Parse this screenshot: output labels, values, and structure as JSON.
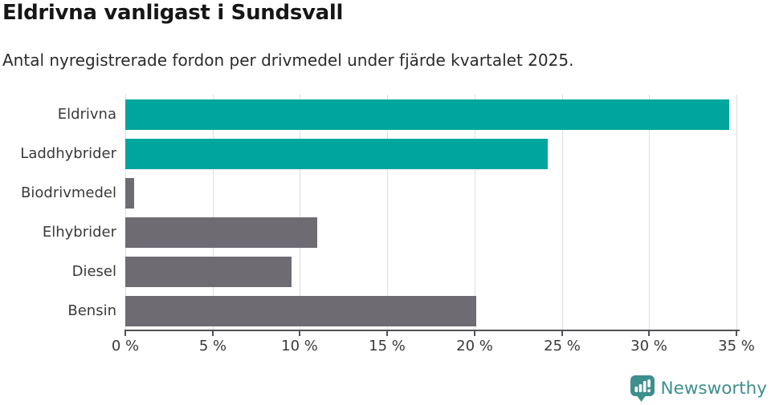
{
  "header": {
    "title": "Eldrivna vanligast i Sundsvall",
    "subtitle": "Antal nyregistrerade fordon per drivmedel under fjärde kvartalet 2025."
  },
  "chart_data": {
    "type": "bar",
    "orientation": "horizontal",
    "title": "Eldrivna vanligast i Sundsvall",
    "subtitle": "Antal nyregistrerade fordon per drivmedel under fjärde kvartalet 2025.",
    "categories": [
      "Eldrivna",
      "Laddhybrider",
      "Biodrivmedel",
      "Elhybrider",
      "Diesel",
      "Bensin"
    ],
    "values": [
      34.6,
      24.2,
      0.5,
      11.0,
      9.5,
      20.1
    ],
    "unit": "%",
    "bar_colors": [
      "#00a69d",
      "#00a69d",
      "#6e6b73",
      "#6e6b73",
      "#6e6b73",
      "#6e6b73"
    ],
    "highlight_color": "#00a69d",
    "base_color": "#6e6b73",
    "xlim": [
      0,
      35
    ],
    "xticks": [
      0,
      5,
      10,
      15,
      20,
      25,
      30,
      35
    ],
    "xtick_labels": [
      "0 %",
      "5 %",
      "10 %",
      "15 %",
      "20 %",
      "25 %",
      "30 %",
      "35 %"
    ],
    "xlabel": "",
    "ylabel": "",
    "grid": "vertical",
    "gridline_color": "#dedee1",
    "axis_color": "#515155",
    "legend": "none"
  },
  "branding": {
    "logo_text": "Newsworthy",
    "logo_color": "#3f8e8e",
    "logo_icon": "speech-bubble-bar-chart-icon"
  }
}
